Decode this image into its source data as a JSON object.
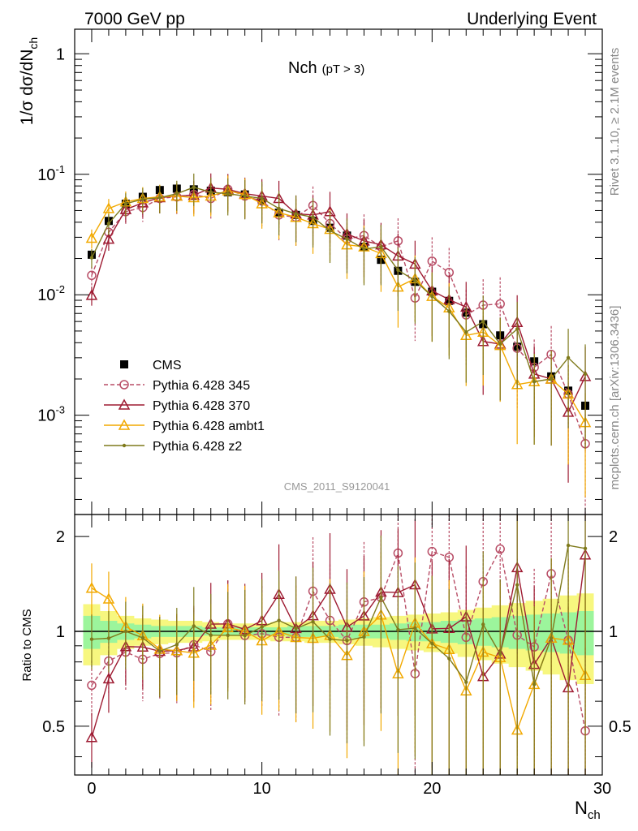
{
  "header": {
    "left": "7000 GeV pp",
    "right": "Underlying Event"
  },
  "side_text": {
    "rivet": "Rivet 3.1.10, ≥ 2.1M events",
    "mcplots": "mcplots.cern.ch [arXiv:1306.3436]"
  },
  "chart_data": {
    "type": "scatter",
    "title": "Nch",
    "title_cut": "(pT >  3)",
    "watermark": "CMS_2011_S9120041",
    "xlabel": "N",
    "xlabel_sub": "ch",
    "ylabel": "1/σ dσ/dN",
    "ylabel_sub": "ch",
    "ratio_ylabel": "Ratio to CMS",
    "xlim": [
      -1,
      30
    ],
    "ylim": [
      0.00015,
      1.6
    ],
    "yscale": "log",
    "ratio_ylim": [
      0.35,
      2.35
    ],
    "ratio_yscale": "log",
    "xticks": [
      "0",
      "10",
      "20",
      "30"
    ],
    "yticks": [
      "1",
      "10^-1",
      "10^-2",
      "10^-3"
    ],
    "ratio_yticks": [
      "2",
      "1",
      "0.5"
    ],
    "legend_position": "lower-left",
    "x": [
      0,
      1,
      2,
      3,
      4,
      5,
      6,
      7,
      8,
      9,
      10,
      11,
      12,
      13,
      14,
      15,
      16,
      17,
      18,
      19,
      20,
      21,
      22,
      23,
      24,
      25,
      26,
      27,
      28,
      29
    ],
    "series": [
      {
        "name": "CMS",
        "color": "#000000",
        "marker": "square",
        "values": [
          0.0215,
          0.041,
          0.057,
          0.065,
          0.074,
          0.076,
          0.075,
          0.073,
          0.071,
          0.068,
          0.061,
          0.048,
          0.046,
          0.041,
          0.036,
          0.031,
          0.025,
          0.0195,
          0.0158,
          0.0128,
          0.0106,
          0.0089,
          0.0071,
          0.0057,
          0.0046,
          0.0037,
          0.0028,
          0.0021,
          0.0016,
          0.0012
        ]
      },
      {
        "name": "Pythia 6.428 345",
        "color": "#b84d66",
        "marker": "circle",
        "line": "dashed",
        "values": [
          0.0145,
          0.033,
          0.049,
          0.053,
          0.063,
          0.065,
          0.068,
          0.063,
          0.075,
          0.066,
          0.06,
          0.046,
          0.044,
          0.055,
          0.039,
          0.029,
          0.031,
          0.025,
          0.028,
          0.0094,
          0.019,
          0.0153,
          0.0068,
          0.0082,
          0.0084,
          0.0036,
          0.0025,
          0.0032,
          0.0015,
          0.00058
        ]
      },
      {
        "name": "Pythia 6.428 370",
        "color": "#9e1b32",
        "marker": "triangle",
        "line": "solid",
        "values": [
          0.0099,
          0.029,
          0.051,
          0.058,
          0.064,
          0.066,
          0.067,
          0.077,
          0.075,
          0.069,
          0.066,
          0.063,
          0.047,
          0.046,
          0.049,
          0.032,
          0.028,
          0.026,
          0.021,
          0.018,
          0.0108,
          0.0091,
          0.0079,
          0.0041,
          0.0039,
          0.0059,
          0.0022,
          0.002,
          0.00106,
          0.0021
        ]
      },
      {
        "name": "Pythia 6.428 ambt1",
        "color": "#f2a900",
        "marker": "triangle",
        "line": "solid",
        "values": [
          0.0295,
          0.052,
          0.059,
          0.063,
          0.065,
          0.066,
          0.064,
          0.066,
          0.073,
          0.068,
          0.057,
          0.048,
          0.044,
          0.039,
          0.035,
          0.026,
          0.025,
          0.022,
          0.0116,
          0.0136,
          0.0097,
          0.0078,
          0.0046,
          0.0049,
          0.0038,
          0.0018,
          0.0019,
          0.002,
          0.0015,
          0.00087
        ]
      },
      {
        "name": "Pythia 6.428 z2",
        "color": "#7f7a1c",
        "marker": "dot",
        "line": "solid",
        "values": [
          0.0203,
          0.039,
          0.057,
          0.062,
          0.064,
          0.069,
          0.078,
          0.071,
          0.069,
          0.066,
          0.063,
          0.052,
          0.047,
          0.044,
          0.034,
          0.029,
          0.024,
          0.025,
          0.016,
          0.0131,
          0.0097,
          0.0073,
          0.0049,
          0.006,
          0.0039,
          0.0052,
          0.0019,
          0.002,
          0.003,
          0.0022
        ]
      }
    ],
    "data_error_bands": {
      "stat_rel": [
        0.12,
        0.08,
        0.06,
        0.05,
        0.04,
        0.04,
        0.04,
        0.03,
        0.03,
        0.03,
        0.03,
        0.03,
        0.04,
        0.04,
        0.04,
        0.05,
        0.05,
        0.05,
        0.06,
        0.07,
        0.07,
        0.08,
        0.09,
        0.1,
        0.11,
        0.12,
        0.13,
        0.14,
        0.15,
        0.16
      ],
      "total_rel": [
        0.22,
        0.16,
        0.12,
        0.1,
        0.09,
        0.08,
        0.08,
        0.07,
        0.06,
        0.06,
        0.06,
        0.07,
        0.07,
        0.08,
        0.08,
        0.09,
        0.1,
        0.11,
        0.12,
        0.13,
        0.14,
        0.15,
        0.17,
        0.19,
        0.21,
        0.23,
        0.25,
        0.27,
        0.3,
        0.32
      ],
      "colors": {
        "stat": "#9cf59c",
        "total": "#f7f77f"
      }
    }
  }
}
